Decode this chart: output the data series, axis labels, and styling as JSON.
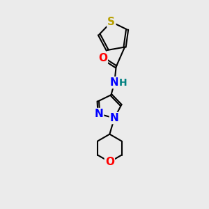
{
  "background_color": "#ebebeb",
  "bond_color": "#000000",
  "bond_width": 1.5,
  "atom_colors": {
    "S": "#b8a000",
    "O": "#ff0000",
    "N": "#0000ff",
    "H": "#008080",
    "C": "#000000"
  },
  "font_size_atoms": 11,
  "font_size_h": 10,
  "figsize": [
    3.0,
    3.0
  ],
  "dpi": 100
}
